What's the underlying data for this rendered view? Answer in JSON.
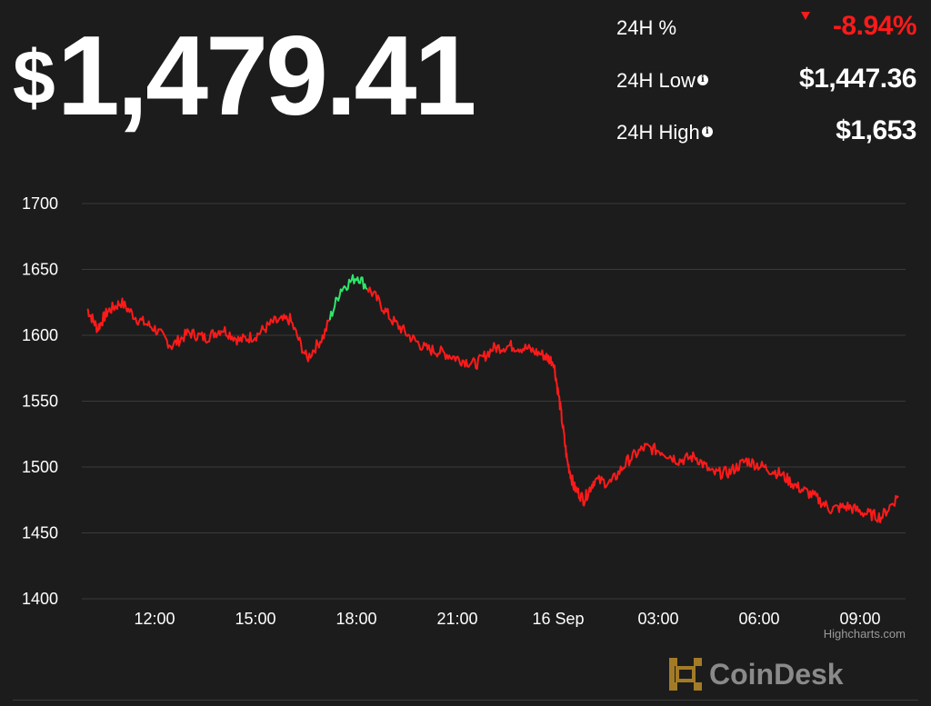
{
  "header": {
    "price_symbol": "$",
    "price_value": "1,479.41",
    "stats": [
      {
        "label": "24H %",
        "value": "-8.94%"
      },
      {
        "label": "24H Low",
        "value": "$1,447.36"
      },
      {
        "label": "24H High",
        "value": "$1,653"
      }
    ]
  },
  "colors": {
    "background": "#1c1c1c",
    "line_down": "#ff1a1a",
    "line_up": "#2ee66b",
    "grid": "#3a3a3a",
    "negative": "#ff1a1a"
  },
  "branding": {
    "highcharts_credit": "Highcharts.com",
    "logo_text": "CoinDesk"
  },
  "chart_data": {
    "type": "line",
    "ylim": [
      1400,
      1700
    ],
    "yticks": [
      "1700",
      "1650",
      "1600",
      "1550",
      "1500",
      "1450",
      "1400"
    ],
    "xticks": [
      "12:00",
      "15:00",
      "18:00",
      "21:00",
      "16 Sep",
      "03:00",
      "06:00",
      "09:00"
    ],
    "x_unit": "hours",
    "grid": "horizontal",
    "x_hours_since_start": [
      0,
      0.3,
      0.6,
      1.0,
      1.5,
      2.0,
      2.5,
      3.0,
      3.5,
      4.0,
      4.5,
      5.0,
      5.5,
      6.0,
      6.5,
      7.0,
      7.5,
      8.0,
      8.5,
      9.0,
      9.5,
      10.0,
      10.5,
      11.0,
      11.5,
      12.0,
      12.5,
      13.0,
      13.5,
      13.8,
      14.0,
      14.2,
      14.4,
      14.7,
      15.0,
      15.5,
      16.0,
      16.5,
      17.0,
      17.5,
      18.0,
      18.5,
      19.0,
      19.5,
      20.0,
      20.5,
      21.0,
      21.5,
      22.0,
      22.5,
      23.0,
      23.5,
      24.0
    ],
    "values": [
      1620,
      1605,
      1618,
      1625,
      1612,
      1605,
      1592,
      1602,
      1598,
      1605,
      1596,
      1600,
      1610,
      1612,
      1582,
      1600,
      1635,
      1645,
      1630,
      1612,
      1600,
      1590,
      1587,
      1582,
      1578,
      1590,
      1592,
      1590,
      1585,
      1580,
      1545,
      1505,
      1485,
      1475,
      1490,
      1488,
      1505,
      1515,
      1512,
      1505,
      1508,
      1495,
      1496,
      1505,
      1500,
      1495,
      1485,
      1478,
      1468,
      1470,
      1465,
      1462,
      1478
    ],
    "up_segment_x_range": [
      7.2,
      8.3
    ],
    "series": [
      {
        "values_ref": "values"
      }
    ]
  }
}
